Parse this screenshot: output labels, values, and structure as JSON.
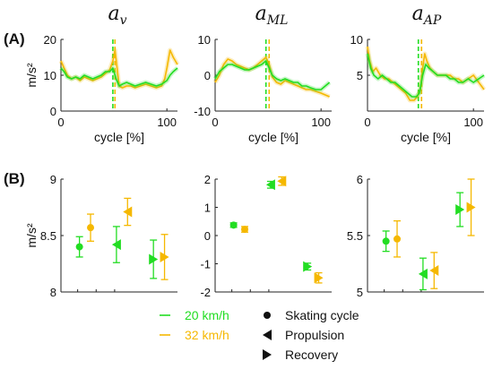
{
  "figure": {
    "panel_a_label": "(A)",
    "panel_b_label": "(B)",
    "column_titles": [
      {
        "base": "a",
        "sub": "v"
      },
      {
        "base": "a",
        "sub": "ML"
      },
      {
        "base": "a",
        "sub": "AP"
      }
    ],
    "colors": {
      "green": "#22dd22",
      "orange": "#f5b800",
      "axis": "#222222"
    },
    "legend": {
      "series": [
        {
          "label": "20 km/h",
          "color": "#22dd22"
        },
        {
          "label": "32 km/h",
          "color": "#f5b800"
        }
      ],
      "markers": [
        {
          "label": "Skating cycle",
          "marker": "circle"
        },
        {
          "label": "Propulsion",
          "marker": "triangle-left"
        },
        {
          "label": "Recovery",
          "marker": "triangle-right"
        }
      ]
    }
  },
  "chart_data": [
    {
      "type": "line",
      "panel": "A",
      "column": 0,
      "ylabel": "m/s²",
      "xlabel": "cycle [%]",
      "xlim": [
        0,
        110
      ],
      "ylim": [
        0,
        20
      ],
      "xticks": [
        0,
        100
      ],
      "yticks": [
        0,
        10,
        20
      ],
      "vline_green": 49,
      "vline_orange": 51,
      "series": [
        {
          "name": "20 km/h",
          "color": "#22dd22",
          "x": [
            0,
            3,
            6,
            10,
            14,
            18,
            22,
            26,
            30,
            34,
            38,
            42,
            46,
            49,
            52,
            55,
            58,
            62,
            66,
            70,
            75,
            80,
            85,
            90,
            95,
            100,
            103,
            106,
            110
          ],
          "y": [
            12,
            11,
            9.5,
            9,
            9.5,
            9,
            10,
            9.5,
            9,
            9.5,
            10,
            11,
            11,
            12,
            9,
            7,
            7.5,
            8,
            7.5,
            7,
            7.5,
            8,
            7.5,
            7,
            7.5,
            8.5,
            10,
            11,
            12
          ]
        },
        {
          "name": "32 km/h",
          "color": "#f5b800",
          "x": [
            0,
            3,
            6,
            10,
            14,
            18,
            22,
            26,
            30,
            34,
            38,
            42,
            46,
            49,
            51,
            53,
            55,
            58,
            62,
            66,
            70,
            75,
            80,
            85,
            90,
            95,
            98,
            100,
            103,
            106,
            110
          ],
          "y": [
            14,
            12,
            10,
            9,
            9.5,
            8.5,
            9.5,
            9,
            8.5,
            9,
            9.5,
            10.5,
            11.5,
            14,
            17,
            12,
            7,
            6.5,
            7,
            7,
            6.5,
            7,
            7.5,
            7,
            6.5,
            7,
            9,
            12,
            17,
            15,
            13
          ]
        }
      ]
    },
    {
      "type": "line",
      "panel": "A",
      "column": 1,
      "xlabel": "cycle [%]",
      "xlim": [
        0,
        110
      ],
      "ylim": [
        -10,
        10
      ],
      "xticks": [
        0,
        100
      ],
      "yticks": [
        -10,
        0,
        10
      ],
      "vline_green": 48,
      "vline_orange": 51,
      "series": [
        {
          "name": "20 km/h",
          "color": "#22dd22",
          "x": [
            0,
            4,
            8,
            12,
            16,
            20,
            24,
            28,
            32,
            36,
            40,
            44,
            48,
            51,
            54,
            58,
            62,
            66,
            70,
            74,
            78,
            82,
            86,
            90,
            95,
            100,
            104,
            108
          ],
          "y": [
            -1,
            1,
            2,
            3,
            3,
            2.5,
            2,
            1.5,
            1.5,
            2,
            2.5,
            3,
            4,
            2,
            0,
            -1,
            -1.5,
            -1,
            -1.5,
            -2,
            -2,
            -3,
            -3,
            -3.5,
            -4,
            -4,
            -3,
            -2
          ]
        },
        {
          "name": "32 km/h",
          "color": "#f5b800",
          "x": [
            0,
            4,
            8,
            12,
            16,
            20,
            24,
            28,
            32,
            36,
            40,
            44,
            48,
            51,
            54,
            58,
            62,
            66,
            70,
            74,
            78,
            82,
            86,
            90,
            95,
            100,
            104,
            108
          ],
          "y": [
            -2,
            0,
            3,
            4.5,
            4,
            3,
            2.5,
            2,
            1.5,
            2,
            3,
            4,
            5,
            3,
            -0.5,
            -2,
            -2.5,
            -1.5,
            -2,
            -2.5,
            -3,
            -3.5,
            -4,
            -4,
            -4.5,
            -5,
            -5.5,
            -6
          ]
        }
      ]
    },
    {
      "type": "line",
      "panel": "A",
      "column": 2,
      "xlabel": "cycle [%]",
      "xlim": [
        0,
        110
      ],
      "ylim": [
        0,
        10
      ],
      "xticks": [
        0,
        100
      ],
      "yticks": [
        5,
        10
      ],
      "vline_green": 48,
      "vline_orange": 51,
      "series": [
        {
          "name": "20 km/h",
          "color": "#22dd22",
          "x": [
            0,
            3,
            6,
            10,
            14,
            18,
            22,
            26,
            30,
            34,
            38,
            42,
            46,
            49,
            52,
            55,
            58,
            62,
            66,
            70,
            74,
            78,
            82,
            86,
            90,
            95,
            100,
            105,
            110
          ],
          "y": [
            8,
            6,
            5,
            4.5,
            5,
            4.5,
            4,
            4,
            3.5,
            3,
            2.5,
            2,
            2,
            2.5,
            5,
            6.5,
            6,
            5.5,
            5,
            5,
            5,
            4.5,
            4.5,
            4,
            4,
            4.5,
            4,
            4.5,
            5
          ]
        },
        {
          "name": "32 km/h",
          "color": "#f5b800",
          "x": [
            0,
            2,
            5,
            8,
            12,
            16,
            20,
            24,
            28,
            32,
            36,
            40,
            44,
            47,
            50,
            52,
            54,
            56,
            59,
            62,
            66,
            70,
            74,
            78,
            82,
            86,
            90,
            95,
            100,
            105,
            110
          ],
          "y": [
            9,
            7,
            5.5,
            6,
            5,
            4.5,
            4.5,
            4,
            3.5,
            3,
            2.5,
            1.5,
            1.5,
            2,
            3,
            6,
            8,
            7,
            6,
            5.5,
            5,
            5,
            5,
            5,
            4.5,
            4.5,
            4,
            4.5,
            5,
            4,
            3
          ]
        }
      ]
    },
    {
      "type": "scatter",
      "panel": "B",
      "column": 0,
      "ylabel": "m/s²",
      "ylim": [
        8,
        9
      ],
      "yticks": [
        8,
        8.5,
        9
      ],
      "points": [
        {
          "series": "20 km/h",
          "marker": "circle",
          "x": 1,
          "y": 8.4,
          "err": 0.09
        },
        {
          "series": "32 km/h",
          "marker": "circle",
          "x": 1.6,
          "y": 8.57,
          "err": 0.12
        },
        {
          "series": "20 km/h",
          "marker": "triangle-left",
          "x": 3,
          "y": 8.42,
          "err": 0.16
        },
        {
          "series": "32 km/h",
          "marker": "triangle-left",
          "x": 3.6,
          "y": 8.71,
          "err": 0.12
        },
        {
          "series": "20 km/h",
          "marker": "triangle-right",
          "x": 5,
          "y": 8.29,
          "err": 0.17
        },
        {
          "series": "32 km/h",
          "marker": "triangle-right",
          "x": 5.6,
          "y": 8.31,
          "err": 0.2
        }
      ]
    },
    {
      "type": "scatter",
      "panel": "B",
      "column": 1,
      "ylim": [
        -2,
        2
      ],
      "yticks": [
        -2,
        -1,
        0,
        1,
        2
      ],
      "points": [
        {
          "series": "20 km/h",
          "marker": "circle",
          "x": 1,
          "y": 0.37,
          "err": 0.08
        },
        {
          "series": "32 km/h",
          "marker": "circle",
          "x": 1.6,
          "y": 0.22,
          "err": 0.1
        },
        {
          "series": "20 km/h",
          "marker": "triangle-left",
          "x": 3,
          "y": 1.8,
          "err": 0.12
        },
        {
          "series": "32 km/h",
          "marker": "triangle-left",
          "x": 3.6,
          "y": 1.93,
          "err": 0.15
        },
        {
          "series": "20 km/h",
          "marker": "triangle-right",
          "x": 5,
          "y": -1.1,
          "err": 0.12
        },
        {
          "series": "32 km/h",
          "marker": "triangle-right",
          "x": 5.6,
          "y": -1.5,
          "err": 0.18
        }
      ]
    },
    {
      "type": "scatter",
      "panel": "B",
      "column": 2,
      "ylim": [
        5,
        6
      ],
      "yticks": [
        5,
        5.5,
        6
      ],
      "points": [
        {
          "series": "20 km/h",
          "marker": "circle",
          "x": 1,
          "y": 5.45,
          "err": 0.09
        },
        {
          "series": "32 km/h",
          "marker": "circle",
          "x": 1.6,
          "y": 5.47,
          "err": 0.16
        },
        {
          "series": "20 km/h",
          "marker": "triangle-left",
          "x": 3,
          "y": 5.16,
          "err": 0.14
        },
        {
          "series": "32 km/h",
          "marker": "triangle-left",
          "x": 3.6,
          "y": 5.19,
          "err": 0.16
        },
        {
          "series": "20 km/h",
          "marker": "triangle-right",
          "x": 5,
          "y": 5.73,
          "err": 0.15
        },
        {
          "series": "32 km/h",
          "marker": "triangle-right",
          "x": 5.6,
          "y": 5.75,
          "err": 0.25
        }
      ]
    }
  ]
}
